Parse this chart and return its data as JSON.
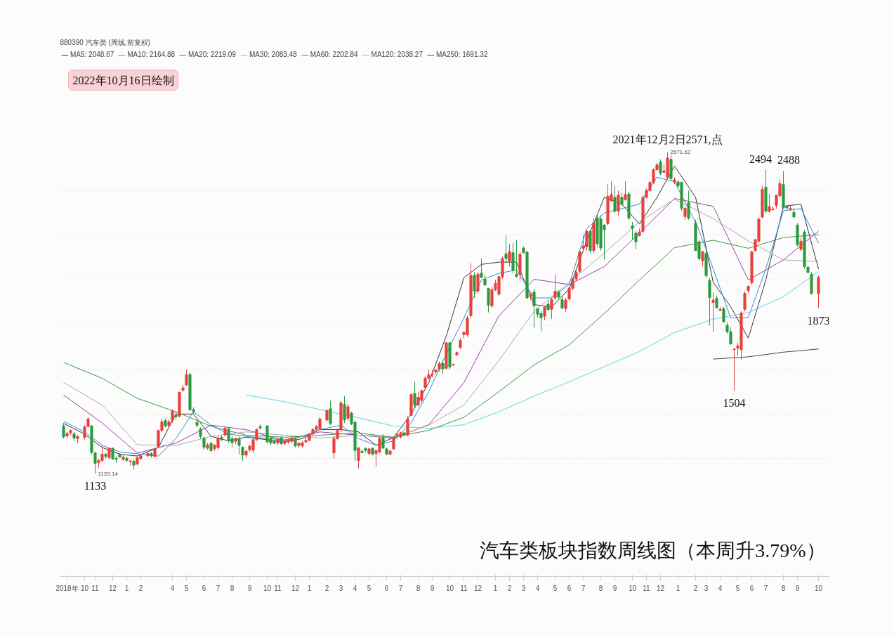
{
  "chart_data": {
    "type": "candlestick",
    "title": "汽车类板块指数周线图（本周升3.79%）",
    "subtitle": "880390 汽车类 (周线,前复权)",
    "x": [
      "2018-08-31",
      "2018-09-07",
      "2018-09-14",
      "2018-09-21",
      "2018-09-28",
      "2018-10-12",
      "2018-10-19",
      "2018-10-26",
      "2018-11-02",
      "2018-11-09",
      "2018-11-16",
      "2018-11-23",
      "2018-11-30",
      "2018-12-07",
      "2018-12-14",
      "2018-12-21",
      "2018-12-28",
      "2019-01-04",
      "2019-01-11",
      "2019-01-18",
      "2019-01-25",
      "2019-02-01",
      "2019-02-15",
      "2019-02-22",
      "2019-03-01",
      "2019-03-08",
      "2019-03-15",
      "2019-03-22",
      "2019-03-29",
      "2019-04-05",
      "2019-04-12",
      "2019-04-19",
      "2019-04-26",
      "2019-05-03",
      "2019-05-10",
      "2019-05-17",
      "2019-05-24",
      "2019-05-31",
      "2019-06-07",
      "2019-06-14",
      "2019-06-21",
      "2019-06-28",
      "2019-07-05",
      "2019-07-12",
      "2019-07-19",
      "2019-07-26",
      "2019-08-02",
      "2019-08-09",
      "2019-08-16",
      "2019-08-23",
      "2019-08-30",
      "2019-09-06",
      "2019-09-13",
      "2019-09-20",
      "2019-09-27",
      "2019-10-11",
      "2019-10-18",
      "2019-10-25",
      "2019-11-01",
      "2019-11-08",
      "2019-11-15",
      "2019-11-22",
      "2019-11-29",
      "2019-12-06",
      "2019-12-13",
      "2019-12-20",
      "2019-12-27",
      "2020-01-03",
      "2020-01-10",
      "2020-01-17",
      "2020-01-24",
      "2020-02-07",
      "2020-02-14",
      "2020-02-21",
      "2020-02-28",
      "2020-03-06",
      "2020-03-13",
      "2020-03-20",
      "2020-03-27",
      "2020-04-03",
      "2020-04-10",
      "2020-04-17",
      "2020-04-24",
      "2020-05-01",
      "2020-05-08",
      "2020-05-15",
      "2020-05-22",
      "2020-05-29",
      "2020-06-05",
      "2020-06-12",
      "2020-06-19",
      "2020-06-26",
      "2020-07-03",
      "2020-07-10",
      "2020-07-17",
      "2020-07-24",
      "2020-07-31",
      "2020-08-07",
      "2020-08-14",
      "2020-08-21",
      "2020-08-28",
      "2020-09-04",
      "2020-09-11",
      "2020-09-18",
      "2020-09-25",
      "2020-10-02",
      "2020-10-09",
      "2020-10-16",
      "2020-10-23",
      "2020-10-30",
      "2020-11-06",
      "2020-11-13",
      "2020-11-20",
      "2020-11-27",
      "2020-12-04",
      "2020-12-11",
      "2020-12-18",
      "2020-12-25",
      "2021-01-01",
      "2021-01-08",
      "2021-01-15",
      "2021-01-22",
      "2021-01-29",
      "2021-02-05",
      "2021-02-12",
      "2021-02-19",
      "2021-02-26",
      "2021-03-05",
      "2021-03-12",
      "2021-03-19",
      "2021-03-26",
      "2021-04-02",
      "2021-04-09",
      "2021-04-16",
      "2021-04-23",
      "2021-04-30",
      "2021-05-07",
      "2021-05-14",
      "2021-05-21",
      "2021-05-28",
      "2021-06-04",
      "2021-06-11",
      "2021-06-18",
      "2021-06-25",
      "2021-07-02",
      "2021-07-09",
      "2021-07-16",
      "2021-07-23",
      "2021-07-30",
      "2021-08-06",
      "2021-08-13",
      "2021-08-20",
      "2021-08-27",
      "2021-09-03",
      "2021-09-10",
      "2021-09-17",
      "2021-09-24",
      "2021-10-01",
      "2021-10-08",
      "2021-10-15",
      "2021-10-22",
      "2021-10-29",
      "2021-11-05",
      "2021-11-12",
      "2021-11-19",
      "2021-11-26",
      "2021-12-03",
      "2021-12-10",
      "2021-12-17",
      "2021-12-24",
      "2021-12-31",
      "2022-01-07",
      "2022-01-14",
      "2022-01-21",
      "2022-01-28",
      "2022-02-11",
      "2022-02-18",
      "2022-02-25",
      "2022-03-04",
      "2022-03-11",
      "2022-03-18",
      "2022-03-25",
      "2022-04-01",
      "2022-04-08",
      "2022-04-15",
      "2022-04-22",
      "2022-04-29",
      "2022-05-06",
      "2022-05-13",
      "2022-05-20",
      "2022-05-27",
      "2022-06-03",
      "2022-06-10",
      "2022-06-17",
      "2022-06-24",
      "2022-07-01",
      "2022-07-08",
      "2022-07-15",
      "2022-07-22",
      "2022-07-29",
      "2022-08-05",
      "2022-08-12",
      "2022-08-19",
      "2022-08-26",
      "2022-09-02",
      "2022-09-09",
      "2022-09-16",
      "2022-09-23",
      "2022-09-30",
      "2022-10-14"
    ],
    "ohlc": [
      [
        1347,
        1360,
        1290,
        1298
      ],
      [
        1302,
        1320,
        1290,
        1313
      ],
      [
        1316,
        1330,
        1305,
        1326
      ],
      [
        1311,
        1320,
        1280,
        1292
      ],
      [
        1290,
        1305,
        1270,
        1300
      ],
      [
        1295,
        1350,
        1285,
        1342
      ],
      [
        1344,
        1385,
        1340,
        1378
      ],
      [
        1347,
        1350,
        1220,
        1228
      ],
      [
        1226,
        1230,
        1133.14,
        1179
      ],
      [
        1182,
        1200,
        1160,
        1192
      ],
      [
        1192,
        1259,
        1185,
        1220
      ],
      [
        1220,
        1225,
        1200,
        1210
      ],
      [
        1205,
        1250,
        1195,
        1247
      ],
      [
        1247,
        1250,
        1195,
        1199
      ],
      [
        1202,
        1210,
        1180,
        1197
      ],
      [
        1218,
        1225,
        1205,
        1207
      ],
      [
        1197,
        1215,
        1190,
        1207
      ],
      [
        1202,
        1210,
        1185,
        1192
      ],
      [
        1187,
        1195,
        1170,
        1190
      ],
      [
        1189,
        1195,
        1150,
        1171
      ],
      [
        1176,
        1215,
        1170,
        1205
      ],
      [
        1200,
        1215,
        1195,
        1213
      ],
      [
        1213,
        1230,
        1208,
        1223
      ],
      [
        1223,
        1230,
        1205,
        1213
      ],
      [
        1210,
        1250,
        1205,
        1244
      ],
      [
        1254,
        1330,
        1250,
        1326
      ],
      [
        1326,
        1380,
        1320,
        1365
      ],
      [
        1371,
        1380,
        1340,
        1347
      ],
      [
        1347,
        1375,
        1345,
        1365
      ],
      [
        1371,
        1420,
        1360,
        1414
      ],
      [
        1395,
        1410,
        1375,
        1388
      ],
      [
        1391,
        1500,
        1385,
        1497
      ],
      [
        1507,
        1530,
        1500,
        1517
      ],
      [
        1530,
        1600,
        1525,
        1577
      ],
      [
        1577,
        1585,
        1415,
        1419
      ],
      [
        1419,
        1430,
        1400,
        1412
      ],
      [
        1362,
        1370,
        1340,
        1350
      ],
      [
        1333,
        1340,
        1290,
        1300
      ],
      [
        1292,
        1300,
        1240,
        1251
      ],
      [
        1247,
        1270,
        1240,
        1261
      ],
      [
        1269,
        1275,
        1230,
        1236
      ],
      [
        1245,
        1265,
        1235,
        1260
      ],
      [
        1249,
        1300,
        1240,
        1292
      ],
      [
        1295,
        1305,
        1280,
        1285
      ],
      [
        1306,
        1345,
        1300,
        1337
      ],
      [
        1333,
        1340,
        1270,
        1280
      ],
      [
        1290,
        1300,
        1250,
        1272
      ],
      [
        1278,
        1295,
        1265,
        1290
      ],
      [
        1288,
        1300,
        1220,
        1259
      ],
      [
        1251,
        1255,
        1190,
        1216
      ],
      [
        1216,
        1240,
        1205,
        1233
      ],
      [
        1240,
        1262,
        1230,
        1256
      ],
      [
        1238,
        1290,
        1225,
        1285
      ],
      [
        1285,
        1335,
        1280,
        1331
      ],
      [
        1344,
        1355,
        1330,
        1337
      ],
      [
        1347,
        1350,
        1270,
        1275
      ],
      [
        1292,
        1300,
        1260,
        1271
      ],
      [
        1278,
        1285,
        1265,
        1269
      ],
      [
        1271,
        1290,
        1262,
        1285
      ],
      [
        1292,
        1300,
        1260,
        1267
      ],
      [
        1268,
        1285,
        1260,
        1280
      ],
      [
        1275,
        1290,
        1265,
        1285
      ],
      [
        1278,
        1300,
        1272,
        1292
      ],
      [
        1288,
        1295,
        1250,
        1257
      ],
      [
        1259,
        1275,
        1250,
        1269
      ],
      [
        1257,
        1280,
        1250,
        1271
      ],
      [
        1275,
        1295,
        1270,
        1282
      ],
      [
        1282,
        1310,
        1278,
        1309
      ],
      [
        1311,
        1335,
        1305,
        1331
      ],
      [
        1331,
        1350,
        1325,
        1344
      ],
      [
        1334,
        1385,
        1330,
        1378
      ],
      [
        1373,
        1420,
        1365,
        1416
      ],
      [
        1423,
        1460,
        1350,
        1358
      ],
      [
        1226,
        1300,
        1200,
        1290
      ],
      [
        1290,
        1335,
        1285,
        1326
      ],
      [
        1332,
        1460,
        1320,
        1450
      ],
      [
        1443,
        1480,
        1360,
        1373
      ],
      [
        1381,
        1445,
        1370,
        1433
      ],
      [
        1404,
        1410,
        1350,
        1357
      ],
      [
        1363,
        1370,
        1190,
        1237
      ],
      [
        1192,
        1250,
        1156,
        1249
      ],
      [
        1233,
        1240,
        1225,
        1227
      ],
      [
        1246,
        1250,
        1230,
        1237
      ],
      [
        1223,
        1250,
        1215,
        1244
      ],
      [
        1247,
        1250,
        1215,
        1220
      ],
      [
        1223,
        1240,
        1166,
        1237
      ],
      [
        1230,
        1300,
        1225,
        1290
      ],
      [
        1292,
        1310,
        1245,
        1247
      ],
      [
        1244,
        1250,
        1215,
        1220
      ],
      [
        1220,
        1240,
        1215,
        1234
      ],
      [
        1244,
        1300,
        1240,
        1295
      ],
      [
        1306,
        1320,
        1290,
        1310
      ],
      [
        1297,
        1320,
        1290,
        1316
      ],
      [
        1316,
        1320,
        1300,
        1306
      ],
      [
        1306,
        1390,
        1300,
        1378
      ],
      [
        1394,
        1495,
        1390,
        1487
      ],
      [
        1492,
        1545,
        1430,
        1440
      ],
      [
        1440,
        1500,
        1435,
        1475
      ],
      [
        1461,
        1510,
        1450,
        1505
      ],
      [
        1518,
        1570,
        1510,
        1561
      ],
      [
        1560,
        1600,
        1555,
        1575
      ],
      [
        1575,
        1595,
        1565,
        1580
      ],
      [
        1588,
        1600,
        1580,
        1597
      ],
      [
        1600,
        1635,
        1590,
        1626
      ],
      [
        1626,
        1640,
        1580,
        1602
      ],
      [
        1605,
        1720,
        1600,
        1719
      ],
      [
        1719,
        1722,
        1600,
        1610
      ],
      [
        1620,
        1625,
        1615,
        1623
      ],
      [
        1665,
        1680,
        1660,
        1675
      ],
      [
        1698,
        1740,
        1690,
        1729
      ],
      [
        1755,
        1770,
        1740,
        1766
      ],
      [
        1755,
        1840,
        1745,
        1830
      ],
      [
        1840,
        2075,
        1830,
        2021
      ],
      [
        2021,
        2035,
        1920,
        1951
      ],
      [
        1951,
        2035,
        1940,
        2026
      ],
      [
        2031,
        2096,
        2010,
        2011
      ],
      [
        2003,
        2025,
        1975,
        1977
      ],
      [
        1962,
        1965,
        1855,
        1887
      ],
      [
        1884,
        1970,
        1875,
        1957
      ],
      [
        1957,
        2000,
        1950,
        1985
      ],
      [
        1936,
        2020,
        1930,
        2015
      ],
      [
        2015,
        2105,
        2005,
        2096
      ],
      [
        2117,
        2199,
        2080,
        2096
      ],
      [
        2084,
        2160,
        2060,
        2127
      ],
      [
        2122,
        2165,
        2030,
        2044
      ],
      [
        2026,
        2180,
        2010,
        2016
      ],
      [
        2024,
        2125,
        1995,
        2115
      ],
      [
        2143,
        2150,
        2120,
        2122
      ],
      [
        2125,
        2130,
        1915,
        1920
      ],
      [
        1926,
        1940,
        1910,
        1936
      ],
      [
        1946,
        1960,
        1786,
        1884
      ],
      [
        1871,
        1875,
        1830,
        1846
      ],
      [
        1850,
        1860,
        1771,
        1830
      ],
      [
        1838,
        1880,
        1820,
        1879
      ],
      [
        1892,
        1910,
        1860,
        1867
      ],
      [
        1869,
        1920,
        1826,
        1912
      ],
      [
        1920,
        2024,
        1910,
        1950
      ],
      [
        1946,
        1955,
        1915,
        1923
      ],
      [
        1912,
        1925,
        1870,
        1874
      ],
      [
        1872,
        1920,
        1855,
        1910
      ],
      [
        1915,
        1970,
        1905,
        1964
      ],
      [
        1962,
        2010,
        1955,
        2005
      ],
      [
        2005,
        2040,
        1995,
        2034
      ],
      [
        2039,
        2130,
        2030,
        2127
      ],
      [
        2142,
        2200,
        2130,
        2152
      ],
      [
        2148,
        2225,
        2130,
        2218
      ],
      [
        2218,
        2225,
        2120,
        2132
      ],
      [
        2132,
        2277,
        2120,
        2256
      ],
      [
        2277,
        2290,
        2150,
        2163
      ],
      [
        2274,
        2290,
        2130,
        2143
      ],
      [
        2246,
        2250,
        2091,
        2225
      ],
      [
        2253,
        2430,
        2245,
        2375
      ],
      [
        2356,
        2440,
        2350,
        2383
      ],
      [
        2370,
        2420,
        2300,
        2308
      ],
      [
        2308,
        2400,
        2290,
        2380
      ],
      [
        2370,
        2390,
        2330,
        2340
      ],
      [
        2360,
        2442,
        2355,
        2383
      ],
      [
        2385,
        2395,
        2270,
        2277
      ],
      [
        2243,
        2260,
        2180,
        2231
      ],
      [
        2210,
        2220,
        2137,
        2171
      ],
      [
        2199,
        2230,
        2195,
        2215
      ],
      [
        2218,
        2380,
        2210,
        2370
      ],
      [
        2370,
        2410,
        2365,
        2401
      ],
      [
        2401,
        2445,
        2395,
        2437
      ],
      [
        2437,
        2500,
        2430,
        2494
      ],
      [
        2494,
        2525,
        2490,
        2515
      ],
      [
        2528,
        2540,
        2470,
        2478
      ],
      [
        2482,
        2520,
        2480,
        2489
      ],
      [
        2458,
        2571.62,
        2450,
        2546
      ],
      [
        2540,
        2560,
        2445,
        2453
      ],
      [
        2439,
        2460,
        2430,
        2449
      ],
      [
        2439,
        2445,
        2415,
        2422
      ],
      [
        2437,
        2440,
        2310,
        2321
      ],
      [
        2284,
        2330,
        2270,
        2321
      ],
      [
        2346,
        2400,
        2270,
        2277
      ],
      [
        2256,
        2270,
        2130,
        2132
      ],
      [
        2171,
        2180,
        2090,
        2096
      ],
      [
        2086,
        2130,
        2060,
        2127
      ],
      [
        2119,
        2140,
        2010,
        2019
      ],
      [
        1998,
        2010,
        1797,
        1921
      ],
      [
        1900,
        1945,
        1768,
        1910
      ],
      [
        1918,
        1930,
        1870,
        1877
      ],
      [
        1864,
        1880,
        1860,
        1869
      ],
      [
        1871,
        1880,
        1810,
        1812
      ],
      [
        1797,
        1810,
        1760,
        1768
      ],
      [
        1768,
        1790,
        1709,
        1714
      ],
      [
        1688,
        1694,
        1504,
        1691
      ],
      [
        1695,
        1720,
        1660,
        1705
      ],
      [
        1688,
        1860,
        1642,
        1853
      ],
      [
        1869,
        1950,
        1860,
        1941
      ],
      [
        1952,
        1975,
        1940,
        1972
      ],
      [
        1988,
        2130,
        1980,
        2127
      ],
      [
        2132,
        2185,
        2125,
        2181
      ],
      [
        2174,
        2280,
        2165,
        2272
      ],
      [
        2282,
        2422,
        2275,
        2406
      ],
      [
        2416,
        2494,
        2300,
        2308
      ],
      [
        2308,
        2385,
        2300,
        2329
      ],
      [
        2315,
        2330,
        2310,
        2318
      ],
      [
        2334,
        2380,
        2320,
        2380
      ],
      [
        2377,
        2450,
        2370,
        2432
      ],
      [
        2427,
        2488,
        2320,
        2323
      ],
      [
        2329,
        2335,
        2320,
        2322
      ],
      [
        2315,
        2335,
        2310,
        2320
      ],
      [
        2303,
        2320,
        2280,
        2282
      ],
      [
        2246,
        2255,
        2150,
        2158
      ],
      [
        2137,
        2190,
        2130,
        2174
      ],
      [
        2215,
        2225,
        2050,
        2060
      ],
      [
        2057,
        2065,
        2030,
        2034
      ],
      [
        2026,
        2035,
        1935,
        1939
      ],
      [
        1939,
        2020,
        1873,
        2012
      ]
    ],
    "colors": [
      "#2e9a3e",
      "#e8413c",
      "#e8413c",
      "#2e9a3e",
      "#e8413c",
      "#e8413c",
      "#e8413c",
      "#2e9a3e",
      "#2e9a3e",
      "#e8413c",
      "#e8413c",
      "#2e9a3e",
      "#e8413c",
      "#2e9a3e",
      "#2e9a3e",
      "#2e9a3e",
      "#e8413c",
      "#2e9a3e",
      "#e8413c",
      "#2e9a3e",
      "#e8413c",
      "#e8413c",
      "#e8413c",
      "#2e9a3e",
      "#e8413c",
      "#e8413c",
      "#e8413c",
      "#2e9a3e",
      "#e8413c",
      "#e8413c",
      "#2e9a3e",
      "#e8413c",
      "#e8413c",
      "#e8413c",
      "#2e9a3e",
      "#2e9a3e",
      "#2e9a3e",
      "#2e9a3e",
      "#2e9a3e",
      "#e8413c",
      "#2e9a3e",
      "#e8413c",
      "#e8413c",
      "#2e9a3e",
      "#e8413c",
      "#2e9a3e",
      "#2e9a3e",
      "#e8413c",
      "#2e9a3e",
      "#2e9a3e",
      "#e8413c",
      "#e8413c",
      "#e8413c",
      "#e8413c",
      "#2e9a3e",
      "#2e9a3e",
      "#2e9a3e",
      "#2e9a3e",
      "#e8413c",
      "#2e9a3e",
      "#e8413c",
      "#e8413c",
      "#e8413c",
      "#2e9a3e",
      "#e8413c",
      "#e8413c",
      "#e8413c",
      "#e8413c",
      "#e8413c",
      "#e8413c",
      "#e8413c",
      "#e8413c",
      "#2e9a3e",
      "#e8413c",
      "#e8413c",
      "#e8413c",
      "#2e9a3e",
      "#e8413c",
      "#2e9a3e",
      "#2e9a3e",
      "#e8413c",
      "#2e9a3e",
      "#2e9a3e",
      "#e8413c",
      "#2e9a3e",
      "#e8413c",
      "#e8413c",
      "#2e9a3e",
      "#2e9a3e",
      "#e8413c",
      "#e8413c",
      "#e8413c",
      "#e8413c",
      "#2e9a3e",
      "#e8413c",
      "#e8413c",
      "#2e9a3e",
      "#e8413c",
      "#e8413c",
      "#e8413c",
      "#e8413c",
      "#e8413c",
      "#e8413c",
      "#e8413c",
      "#2e9a3e",
      "#e8413c",
      "#2e9a3e",
      "#e8413c",
      "#e8413c",
      "#e8413c",
      "#e8413c",
      "#e8413c",
      "#e8413c",
      "#2e9a3e",
      "#e8413c",
      "#2e9a3e",
      "#2e9a3e",
      "#2e9a3e",
      "#e8413c",
      "#e8413c",
      "#e8413c",
      "#e8413c",
      "#2e9a3e",
      "#e8413c",
      "#2e9a3e",
      "#2e9a3e",
      "#e8413c",
      "#2e9a3e",
      "#2e9a3e",
      "#e8413c",
      "#2e9a3e",
      "#2e9a3e",
      "#2e9a3e",
      "#e8413c",
      "#2e9a3e",
      "#e8413c",
      "#e8413c",
      "#2e9a3e",
      "#2e9a3e",
      "#e8413c",
      "#e8413c",
      "#e8413c",
      "#e8413c",
      "#e8413c",
      "#e8413c",
      "#e8413c",
      "#2e9a3e",
      "#e8413c",
      "#2e9a3e",
      "#2e9a3e",
      "#2e9a3e",
      "#e8413c",
      "#e8413c",
      "#2e9a3e",
      "#e8413c",
      "#2e9a3e",
      "#e8413c",
      "#2e9a3e",
      "#2e9a3e",
      "#2e9a3e",
      "#e8413c",
      "#e8413c",
      "#e8413c",
      "#e8413c",
      "#e8413c",
      "#e8413c",
      "#2e9a3e",
      "#e8413c",
      "#e8413c",
      "#2e9a3e",
      "#e8413c",
      "#2e9a3e",
      "#2e9a3e",
      "#e8413c",
      "#2e9a3e",
      "#2e9a3e",
      "#2e9a3e",
      "#e8413c",
      "#2e9a3e",
      "#2e9a3e",
      "#e8413c",
      "#2e9a3e",
      "#e8413c",
      "#2e9a3e",
      "#2e9a3e",
      "#2e9a3e",
      "#e8413c",
      "#e8413c",
      "#e8413c",
      "#e8413c",
      "#e8413c",
      "#e8413c",
      "#e8413c",
      "#e8413c",
      "#e8413c",
      "#2e9a3e",
      "#e8413c",
      "#e8413c",
      "#e8413c",
      "#e8413c",
      "#2e9a3e",
      "#2e9a3e",
      "#e8413c",
      "#2e9a3e",
      "#2e9a3e",
      "#e8413c",
      "#2e9a3e",
      "#2e9a3e",
      "#2e9a3e",
      "#e8413c"
    ],
    "series": [
      {
        "type": "line",
        "name": "MA5: 2048.67",
        "color": "#333333",
        "x": [
          "2018-08-31",
          "2018-10-12",
          "2018-11-16",
          "2018-12-21",
          "2019-01-25",
          "2019-03-08",
          "2019-04-12",
          "2019-05-17",
          "2019-06-21",
          "2019-07-26",
          "2019-08-30",
          "2019-10-11",
          "2019-11-15",
          "2019-12-20",
          "2020-01-24",
          "2020-03-06",
          "2020-04-10",
          "2020-05-15",
          "2020-06-19",
          "2020-07-24",
          "2020-08-28",
          "2020-10-02",
          "2020-11-06",
          "2020-12-11",
          "2021-01-15",
          "2021-02-19",
          "2021-03-26",
          "2021-04-30",
          "2021-06-04",
          "2021-07-13",
          "2021-08-13",
          "2021-09-17",
          "2021-10-22",
          "2021-11-26",
          "2021-12-31",
          "2022-02-11",
          "2022-03-18",
          "2022-04-22",
          "2022-05-27",
          "2022-07-01",
          "2022-08-05",
          "2022-09-09",
          "2022-10-14"
        ],
        "values": [
          1358,
          1310,
          1250,
          1220,
          1212,
          1250,
          1400,
          1400,
          1300,
          1280,
          1296,
          1285,
          1274,
          1290,
          1330,
          1330,
          1320,
          1260,
          1295,
          1400,
          1540,
          1750,
          2010,
          2070,
          2080,
          2080,
          1890,
          1879,
          1960,
          2200,
          2370,
          2340,
          2250,
          2370,
          2510,
          2370,
          1990,
          1880,
          1740,
          2000,
          2330,
          2340,
          2049
        ]
      },
      {
        "type": "line",
        "name": "MA10: 2164.88",
        "color": "#2f8fd8",
        "x": [
          "2018-08-31",
          "2018-10-12",
          "2018-11-16",
          "2018-12-21",
          "2019-01-25",
          "2019-03-08",
          "2019-04-12",
          "2019-05-17",
          "2019-06-21",
          "2019-07-26",
          "2019-08-30",
          "2019-10-11",
          "2019-11-15",
          "2019-12-20",
          "2020-01-24",
          "2020-03-06",
          "2020-04-10",
          "2020-05-15",
          "2020-06-19",
          "2020-07-24",
          "2020-08-28",
          "2020-10-02",
          "2020-11-06",
          "2020-12-11",
          "2021-01-15",
          "2021-02-19",
          "2021-03-26",
          "2021-04-30",
          "2021-06-04",
          "2021-07-09",
          "2021-08-13",
          "2021-09-17",
          "2021-10-22",
          "2021-11-26",
          "2021-12-31",
          "2022-02-15",
          "2022-03-18",
          "2022-04-22",
          "2022-05-27",
          "2022-07-01",
          "2022-08-05",
          "2022-09-09",
          "2022-10-14"
        ],
        "values": [
          1367,
          1320,
          1260,
          1230,
          1222,
          1212,
          1290,
          1410,
          1350,
          1310,
          1300,
          1290,
          1285,
          1300,
          1330,
          1350,
          1290,
          1260,
          1280,
          1360,
          1500,
          1670,
          1830,
          2000,
          2030,
          2045,
          1920,
          1920,
          1980,
          2230,
          2300,
          2320,
          2340,
          2460,
          2440,
          2240,
          2050,
          1830,
          1832,
          2050,
          2310,
          2320,
          2165
        ]
      },
      {
        "type": "line",
        "name": "MA20: 2219.09",
        "color": "#9b3fa8",
        "x": [
          "2018-08-31",
          "2018-11-16",
          "2019-01-25",
          "2019-04-12",
          "2019-06-21",
          "2019-08-30",
          "2019-11-15",
          "2020-01-24",
          "2020-04-10",
          "2020-06-19",
          "2020-08-28",
          "2020-11-06",
          "2021-01-15",
          "2021-03-26",
          "2021-06-04",
          "2021-08-13",
          "2021-10-22",
          "2021-12-31",
          "2022-03-18",
          "2022-05-27",
          "2022-08-05",
          "2022-10-14"
        ],
        "values": [
          1485,
          1360,
          1225,
          1270,
          1350,
          1330,
          1280,
          1320,
          1305,
          1292,
          1352,
          1540,
          1840,
          2003,
          1980,
          2060,
          2210,
          2365,
          2330,
          2000,
          2090,
          2219
        ]
      },
      {
        "type": "line",
        "name": "MA30: 2083.48",
        "color": "#aaaaaa",
        "x": [
          "2018-08-31",
          "2018-11-16",
          "2019-01-25",
          "2019-04-12",
          "2019-06-21",
          "2019-08-30",
          "2019-11-15",
          "2020-01-24",
          "2020-04-10",
          "2020-06-19",
          "2020-08-28",
          "2020-11-06",
          "2021-01-15",
          "2021-03-26",
          "2021-06-04",
          "2021-08-13",
          "2021-10-22",
          "2021-12-31",
          "2022-03-18",
          "2022-05-27",
          "2022-08-05",
          "2022-10-14"
        ],
        "values": [
          1541,
          1440,
          1262,
          1259,
          1300,
          1320,
          1305,
          1292,
          1305,
          1296,
          1350,
          1440,
          1640,
          1860,
          1990,
          2120,
          2260,
          2362,
          2275,
          2175,
          2090,
          2083
        ]
      },
      {
        "type": "line",
        "name": "MA60: 2202.84",
        "color": "#3a9a3a",
        "x": [
          "2018-08-31",
          "2018-11-16",
          "2019-01-25",
          "2019-04-12",
          "2019-06-21",
          "2019-08-30",
          "2019-11-15",
          "2020-01-24",
          "2020-04-10",
          "2020-06-19",
          "2020-08-28",
          "2020-11-06",
          "2021-01-15",
          "2021-03-26",
          "2021-06-04",
          "2021-08-13",
          "2021-10-22",
          "2021-12-31",
          "2022-03-18",
          "2022-05-27",
          "2022-08-05",
          "2022-10-14"
        ],
        "values": [
          1631,
          1560,
          1470,
          1410,
          1345,
          1305,
          1296,
          1305,
          1315,
          1296,
          1327,
          1385,
          1500,
          1620,
          1710,
          1850,
          2000,
          2145,
          2178,
          2142,
          2190,
          2203
        ]
      },
      {
        "type": "line",
        "name": "MA120: 2038.27",
        "color": "#5ad8e0",
        "x": [
          "2019-08-30",
          "2019-11-15",
          "2020-01-24",
          "2020-04-10",
          "2020-06-19",
          "2020-08-28",
          "2020-11-06",
          "2021-01-15",
          "2021-03-26",
          "2021-06-04",
          "2021-08-13",
          "2021-10-22",
          "2021-12-31",
          "2022-03-18",
          "2022-05-27",
          "2022-08-05",
          "2022-10-14"
        ],
        "values": [
          1485,
          1455,
          1420,
          1383,
          1346,
          1336,
          1352,
          1410,
          1480,
          1544,
          1612,
          1680,
          1765,
          1825,
          1854,
          1925,
          2038
        ]
      },
      {
        "type": "line",
        "name": "MA250: 1691.32",
        "color": "#444444",
        "x": [
          "2022-03-18",
          "2022-05-27",
          "2022-08-05",
          "2022-10-14"
        ],
        "values": [
          1646,
          1656,
          1677,
          1691
        ]
      }
    ],
    "xlim": [
      "2018-08-24",
      "2022-11-04"
    ],
    "xticks": [
      {
        "value": "2018-09-07",
        "label": "2018年"
      },
      {
        "value": "2018-10-12",
        "label": "10"
      },
      {
        "value": "2018-11-02",
        "label": "11"
      },
      {
        "value": "2018-12-07",
        "label": "12"
      },
      {
        "value": "2019-01-04",
        "label": "1"
      },
      {
        "value": "2019-02-01",
        "label": "2"
      },
      {
        "value": "2019-04-05",
        "label": "4"
      },
      {
        "value": "2019-05-03",
        "label": "5"
      },
      {
        "value": "2019-06-07",
        "label": "6"
      },
      {
        "value": "2019-07-05",
        "label": "7"
      },
      {
        "value": "2019-08-02",
        "label": "8"
      },
      {
        "value": "2019-09-06",
        "label": "9"
      },
      {
        "value": "2019-10-11",
        "label": "10"
      },
      {
        "value": "2019-11-01",
        "label": "11"
      },
      {
        "value": "2019-12-06",
        "label": "12"
      },
      {
        "value": "2020-01-03",
        "label": "1"
      },
      {
        "value": "2020-02-07",
        "label": "2"
      },
      {
        "value": "2020-03-06",
        "label": "3"
      },
      {
        "value": "2020-04-03",
        "label": "4"
      },
      {
        "value": "2020-05-01",
        "label": "5"
      },
      {
        "value": "2020-06-05",
        "label": "6"
      },
      {
        "value": "2020-07-03",
        "label": "7"
      },
      {
        "value": "2020-08-07",
        "label": "8"
      },
      {
        "value": "2020-09-04",
        "label": "9"
      },
      {
        "value": "2020-10-09",
        "label": "10"
      },
      {
        "value": "2020-11-06",
        "label": "11"
      },
      {
        "value": "2020-12-04",
        "label": "12"
      },
      {
        "value": "2021-01-08",
        "label": "1"
      },
      {
        "value": "2021-02-05",
        "label": "2"
      },
      {
        "value": "2021-03-05",
        "label": "3"
      },
      {
        "value": "2021-04-02",
        "label": "4"
      },
      {
        "value": "2021-05-07",
        "label": "5"
      },
      {
        "value": "2021-06-04",
        "label": "6"
      },
      {
        "value": "2021-07-02",
        "label": "7"
      },
      {
        "value": "2021-08-06",
        "label": "8"
      },
      {
        "value": "2021-09-03",
        "label": "9"
      },
      {
        "value": "2021-10-08",
        "label": "10"
      },
      {
        "value": "2021-11-05",
        "label": "11"
      },
      {
        "value": "2021-12-03",
        "label": "12"
      },
      {
        "value": "2022-01-07",
        "label": "1"
      },
      {
        "value": "2022-02-11",
        "label": "2"
      },
      {
        "value": "2022-03-04",
        "label": "3"
      },
      {
        "value": "2022-04-01",
        "label": "4"
      },
      {
        "value": "2022-05-06",
        "label": "5"
      },
      {
        "value": "2022-06-03",
        "label": "6"
      },
      {
        "value": "2022-07-01",
        "label": "7"
      },
      {
        "value": "2022-08-05",
        "label": "8"
      },
      {
        "value": "2022-09-02",
        "label": "9"
      },
      {
        "value": "2022-10-14",
        "label": "10"
      }
    ],
    "yticks": [
      {
        "value": 1200,
        "label": null
      },
      {
        "value": 1400,
        "label": null
      },
      {
        "value": 1600,
        "label": null
      },
      {
        "value": 1800,
        "label": null
      },
      {
        "value": 2000,
        "label": null
      },
      {
        "value": 2200,
        "label": null
      },
      {
        "value": 2400,
        "label": null
      }
    ],
    "tick_labels": "x",
    "grid": "y",
    "legend": "top left",
    "annotations": [
      "2022年10月16日绘制",
      {
        "text": "2571.62",
        "x": "2021-12-17",
        "y": 2571.62
      },
      {
        "text": "2021年12月2日2571,点",
        "x": "2021-12-17",
        "y": 2571.62
      },
      {
        "text": "1133.14",
        "x": "2018-11-02",
        "y": 1133.14
      },
      {
        "text": "1133",
        "x": "2018-11-02",
        "y": 1133.14
      },
      {
        "text": "1504",
        "x": "2022-04-29",
        "y": 1504
      },
      {
        "text": "2494",
        "x": "2022-07-01",
        "y": 2494
      },
      {
        "text": "2488",
        "x": "2022-08-05",
        "y": 2488
      },
      {
        "text": "1873",
        "x": "2022-10-14",
        "y": 1873
      }
    ]
  }
}
